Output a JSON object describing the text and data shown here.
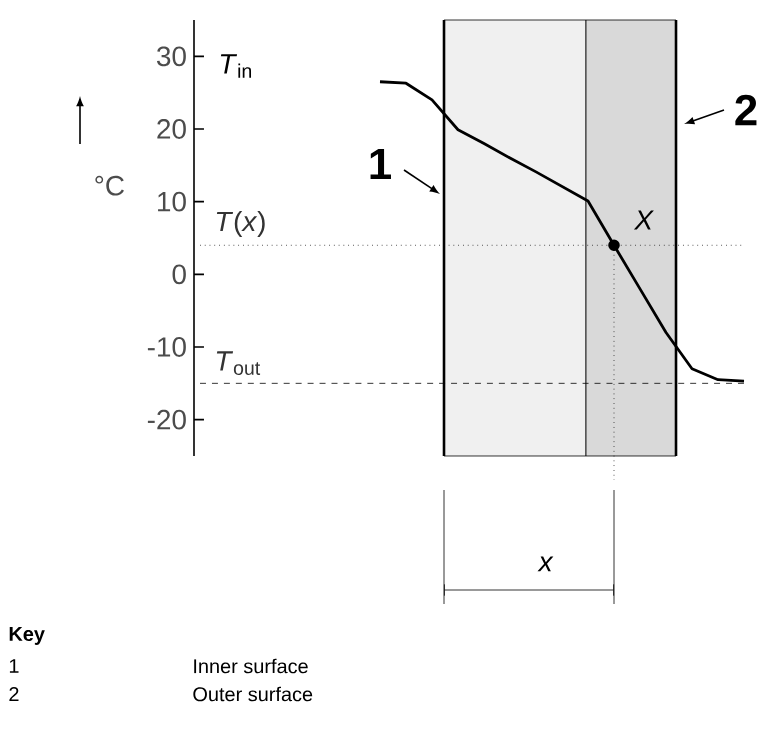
{
  "chart_data": {
    "type": "line",
    "ylabel": "°C",
    "categories": [
      null,
      null,
      null,
      null,
      null,
      null,
      null,
      null,
      null,
      null,
      null,
      null,
      null,
      null,
      null
    ],
    "series": [
      {
        "color": "#000000",
        "values": [
          26.5,
          26.3,
          24,
          19.9,
          18,
          16,
          14.1,
          12.1,
          10.1,
          4,
          -2,
          -8,
          -13,
          -14.5,
          -14.7
        ]
      },
      {
        "type": "scatter",
        "color": "#000000",
        "values": [
          null,
          null,
          null,
          null,
          null,
          null,
          null,
          null,
          null,
          4,
          null,
          null,
          null,
          null,
          null
        ]
      }
    ],
    "ylim": [
      -25,
      35
    ],
    "yticks": [
      -20,
      -10,
      0,
      10,
      20,
      30
    ],
    "tick_labels": "y",
    "ref_lines": [
      {
        "axis": "y",
        "value": 4,
        "label": "*T*(*x*)",
        "line_style": "dotted"
      },
      {
        "axis": "y",
        "value": -15,
        "label": "*T*$_{out}$",
        "line_style": "dashed"
      }
    ],
    "annotations": [
      "*T*$_{in}$",
      "*X*",
      "*x*",
      "1",
      "2",
      "Key",
      "1",
      "Inner surface",
      "2",
      "Outer surface"
    ]
  }
}
